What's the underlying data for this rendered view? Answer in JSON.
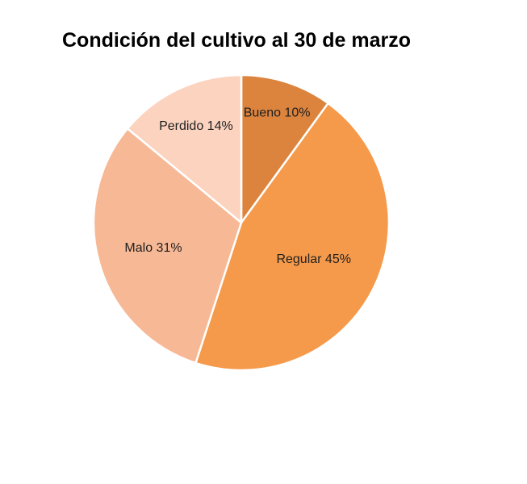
{
  "chart_data": {
    "type": "pie",
    "title": "Condición del cultivo al 30 de marzo",
    "slices": [
      {
        "label": "Bueno 10%",
        "name": "Bueno",
        "value": 10,
        "color": "#dc843e"
      },
      {
        "label": "Regular 45%",
        "name": "Regular",
        "value": 45,
        "color": "#f59a4b"
      },
      {
        "label": "Malo 31%",
        "name": "Malo",
        "value": 31,
        "color": "#f7b895"
      },
      {
        "label": "Perdido 14%",
        "name": "Perdido",
        "value": 14,
        "color": "#fbd3bf"
      }
    ],
    "legend": "none"
  }
}
